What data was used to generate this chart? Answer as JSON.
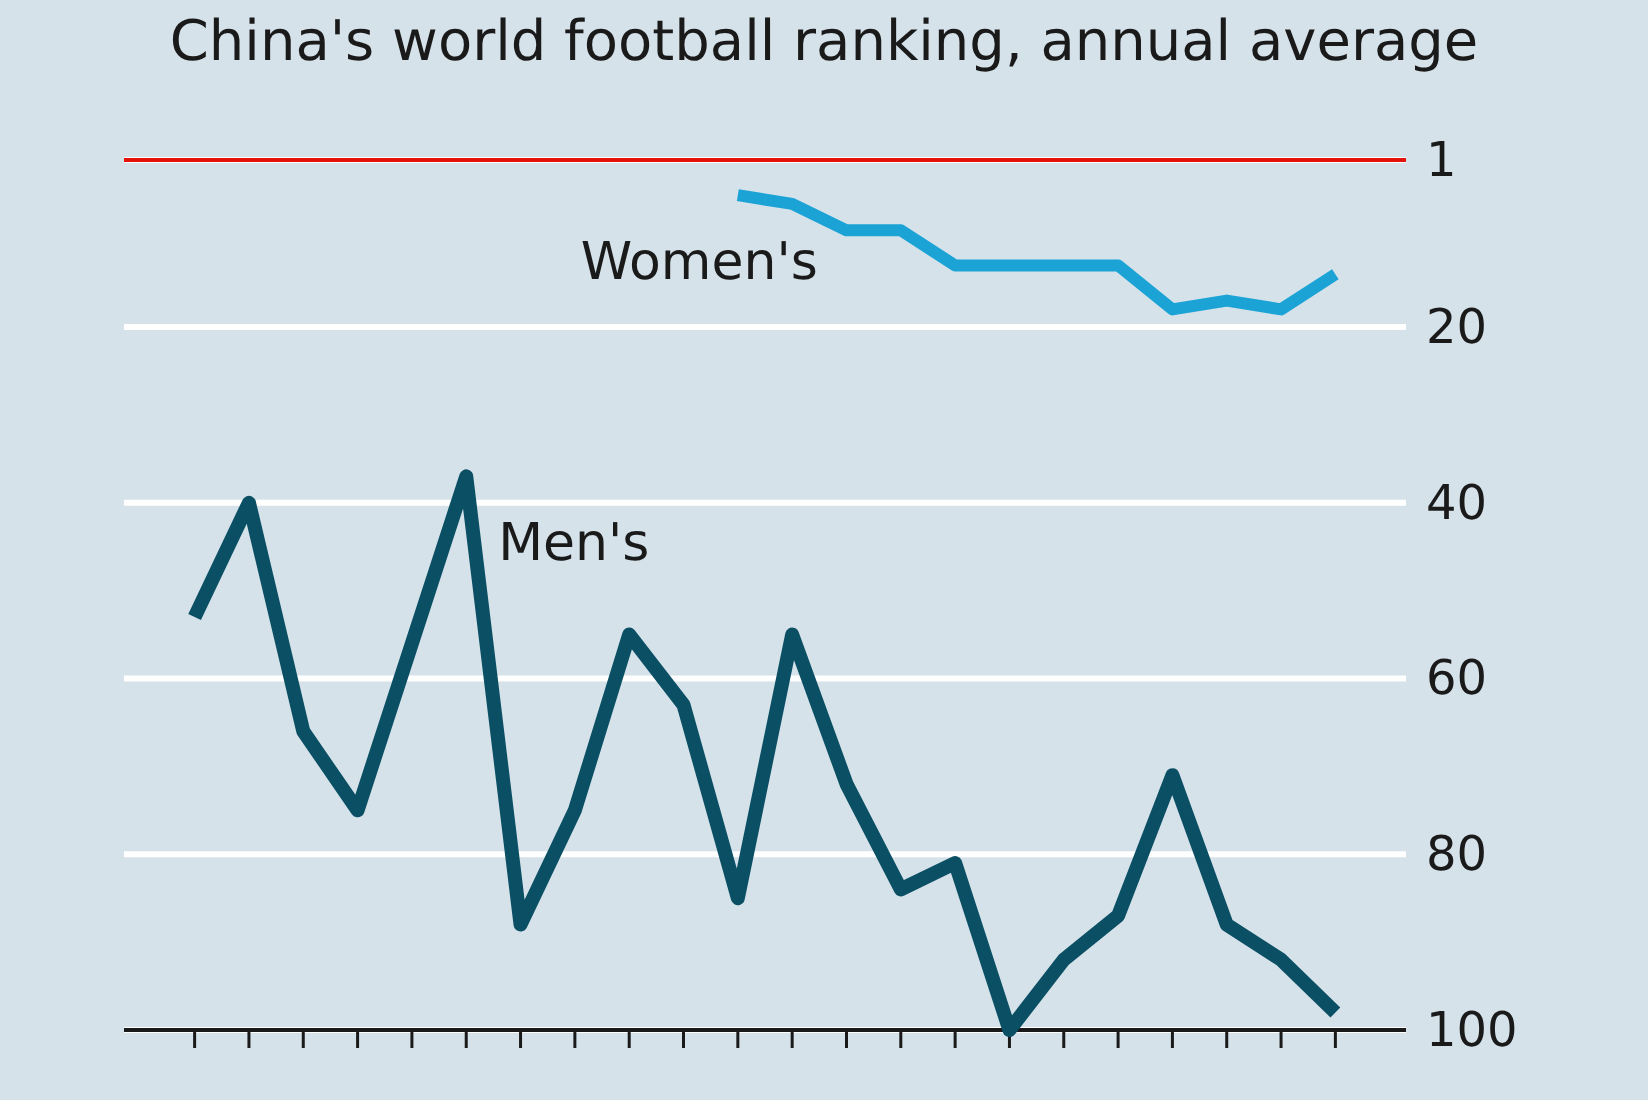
{
  "chart_data": {
    "type": "line",
    "title": "China's world football ranking, annual average",
    "categories": [
      null,
      null,
      null,
      null,
      null,
      null,
      null,
      null,
      null,
      null,
      null,
      null,
      null,
      null,
      null,
      null,
      null,
      null,
      null,
      null,
      null,
      null
    ],
    "series": [
      {
        "name": "Men's",
        "color": "#0b4f64",
        "values": [
          53,
          40,
          66,
          75,
          56,
          37,
          88,
          75,
          55,
          63,
          85,
          55,
          72,
          84,
          81,
          100,
          92,
          87,
          71,
          88,
          92,
          98
        ]
      },
      {
        "name": "Women's",
        "color": "#1ba3d6",
        "values": [
          null,
          null,
          null,
          null,
          null,
          null,
          null,
          null,
          null,
          null,
          5,
          6,
          9,
          9,
          13,
          13,
          13,
          13,
          18,
          17,
          18,
          14
        ]
      }
    ],
    "ylim": [
      100,
      1
    ],
    "yticks": [
      1,
      20,
      40,
      60,
      80,
      100
    ],
    "grid": "y",
    "tick_labels": "y",
    "ref_lines": [
      {
        "axis": "y",
        "value": 1,
        "color": "#e3120b"
      }
    ],
    "line_style": "solid",
    "marker": "none"
  }
}
